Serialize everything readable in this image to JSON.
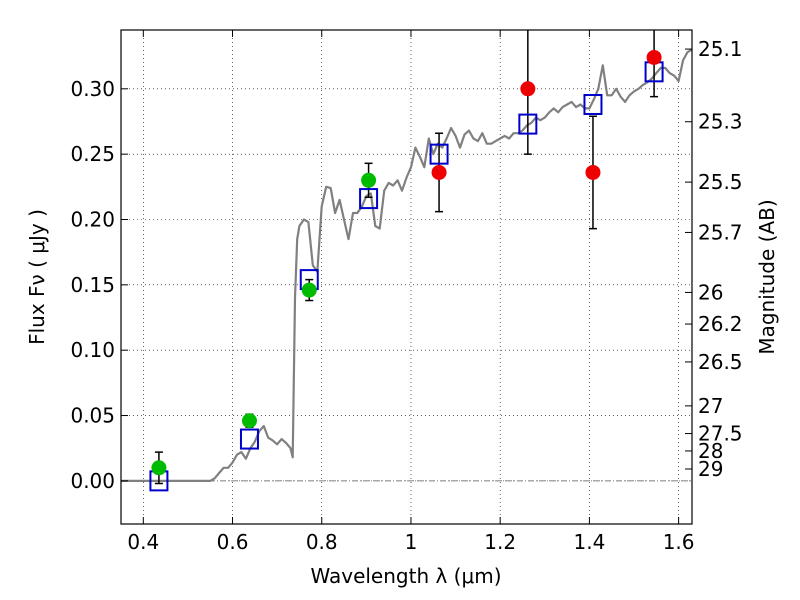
{
  "chart_data": {
    "type": "scatter",
    "xlabel": "Wavelength  λ (μm)",
    "ylabel": "Flux  Fν  ( μJy )",
    "y2label": "Magnitude (AB)",
    "xlim": [
      0.35,
      1.63
    ],
    "ylim": [
      -0.033,
      0.345
    ],
    "grid": true,
    "grid_style": "dotted",
    "x_ticks": [
      {
        "value": 0.4,
        "label": "0.4"
      },
      {
        "value": 0.6,
        "label": "0.6"
      },
      {
        "value": 0.8,
        "label": "0.8"
      },
      {
        "value": 1.0,
        "label": "1"
      },
      {
        "value": 1.2,
        "label": "1.2"
      },
      {
        "value": 1.4,
        "label": "1.4"
      },
      {
        "value": 1.6,
        "label": "1.6"
      }
    ],
    "y_ticks": [
      {
        "value": 0.0,
        "label": "0.00"
      },
      {
        "value": 0.05,
        "label": "0.05"
      },
      {
        "value": 0.1,
        "label": "0.10"
      },
      {
        "value": 0.15,
        "label": "0.15"
      },
      {
        "value": 0.2,
        "label": "0.20"
      },
      {
        "value": 0.25,
        "label": "0.25"
      },
      {
        "value": 0.3,
        "label": "0.30"
      }
    ],
    "magnitude_ticks": [
      {
        "label": "25.1",
        "flux": 0.3304
      },
      {
        "label": "25.3",
        "flux": 0.2748
      },
      {
        "label": "25.5",
        "flux": 0.2286
      },
      {
        "label": "25.7",
        "flux": 0.1901
      },
      {
        "label": "26",
        "flux": 0.1442
      },
      {
        "label": "26.2",
        "flux": 0.12
      },
      {
        "label": "26.5",
        "flux": 0.091
      },
      {
        "label": "27",
        "flux": 0.0574
      },
      {
        "label": "27.5",
        "flux": 0.0362
      },
      {
        "label": "28",
        "flux": 0.0229
      },
      {
        "label": "29",
        "flux": 0.0091
      }
    ],
    "series": [
      {
        "kind": "line",
        "color": "#808080",
        "x": [
          0.35,
          0.4,
          0.45,
          0.5,
          0.55,
          0.56,
          0.57,
          0.58,
          0.59,
          0.6,
          0.61,
          0.62,
          0.63,
          0.64,
          0.65,
          0.66,
          0.67,
          0.68,
          0.69,
          0.7,
          0.71,
          0.72,
          0.73,
          0.735,
          0.74,
          0.745,
          0.75,
          0.76,
          0.77,
          0.78,
          0.79,
          0.8,
          0.81,
          0.82,
          0.83,
          0.84,
          0.85,
          0.86,
          0.87,
          0.88,
          0.89,
          0.9,
          0.91,
          0.92,
          0.93,
          0.94,
          0.95,
          0.96,
          0.97,
          0.98,
          0.99,
          1.0,
          1.01,
          1.02,
          1.03,
          1.04,
          1.05,
          1.06,
          1.07,
          1.08,
          1.09,
          1.1,
          1.11,
          1.12,
          1.13,
          1.14,
          1.15,
          1.16,
          1.17,
          1.18,
          1.19,
          1.2,
          1.21,
          1.22,
          1.23,
          1.24,
          1.25,
          1.26,
          1.27,
          1.28,
          1.29,
          1.3,
          1.31,
          1.32,
          1.33,
          1.34,
          1.35,
          1.36,
          1.37,
          1.38,
          1.39,
          1.4,
          1.41,
          1.42,
          1.43,
          1.44,
          1.45,
          1.46,
          1.47,
          1.48,
          1.49,
          1.5,
          1.51,
          1.52,
          1.53,
          1.54,
          1.55,
          1.56,
          1.57,
          1.58,
          1.59,
          1.6,
          1.61,
          1.62,
          1.63
        ],
        "y": [
          0.0,
          0.0,
          0.0,
          0.0,
          0.0,
          0.002,
          0.006,
          0.01,
          0.01,
          0.014,
          0.02,
          0.022,
          0.017,
          0.025,
          0.03,
          0.038,
          0.042,
          0.033,
          0.031,
          0.028,
          0.032,
          0.029,
          0.025,
          0.018,
          0.14,
          0.185,
          0.195,
          0.2,
          0.198,
          0.165,
          0.16,
          0.21,
          0.225,
          0.224,
          0.205,
          0.215,
          0.2,
          0.185,
          0.205,
          0.205,
          0.21,
          0.218,
          0.22,
          0.195,
          0.193,
          0.222,
          0.228,
          0.226,
          0.23,
          0.222,
          0.232,
          0.24,
          0.255,
          0.248,
          0.24,
          0.262,
          0.25,
          0.258,
          0.255,
          0.262,
          0.27,
          0.264,
          0.255,
          0.265,
          0.268,
          0.262,
          0.26,
          0.266,
          0.258,
          0.258,
          0.26,
          0.262,
          0.264,
          0.262,
          0.266,
          0.266,
          0.268,
          0.272,
          0.274,
          0.278,
          0.276,
          0.278,
          0.282,
          0.285,
          0.282,
          0.286,
          0.288,
          0.29,
          0.286,
          0.288,
          0.285,
          0.285,
          0.292,
          0.3,
          0.318,
          0.295,
          0.295,
          0.3,
          0.294,
          0.29,
          0.295,
          0.298,
          0.3,
          0.303,
          0.305,
          0.308,
          0.312,
          0.316,
          0.316,
          0.312,
          0.31,
          0.306,
          0.322,
          0.328,
          0.33
        ]
      },
      {
        "kind": "open-square",
        "color": "#0000cc",
        "x": [
          0.435,
          0.638,
          0.772,
          0.905,
          1.063,
          1.262,
          1.408,
          1.545
        ],
        "y": [
          0.0,
          0.032,
          0.154,
          0.216,
          0.25,
          0.273,
          0.288,
          0.313
        ]
      },
      {
        "kind": "filled-circle",
        "color": "#00bb00",
        "x": [
          0.435,
          0.638,
          0.772,
          0.905
        ],
        "y": [
          0.01,
          0.046,
          0.146,
          0.23
        ],
        "yerr": [
          0.012,
          0.005,
          0.008,
          0.013
        ]
      },
      {
        "kind": "filled-circle",
        "color": "#ee0000",
        "x": [
          1.063,
          1.262,
          1.408,
          1.545
        ],
        "y": [
          0.236,
          0.3,
          0.236,
          0.324
        ],
        "yerr_low": [
          0.03,
          0.05,
          0.043,
          0.03
        ],
        "yerr_high": [
          0.03,
          0.06,
          0.043,
          0.03
        ]
      }
    ]
  }
}
